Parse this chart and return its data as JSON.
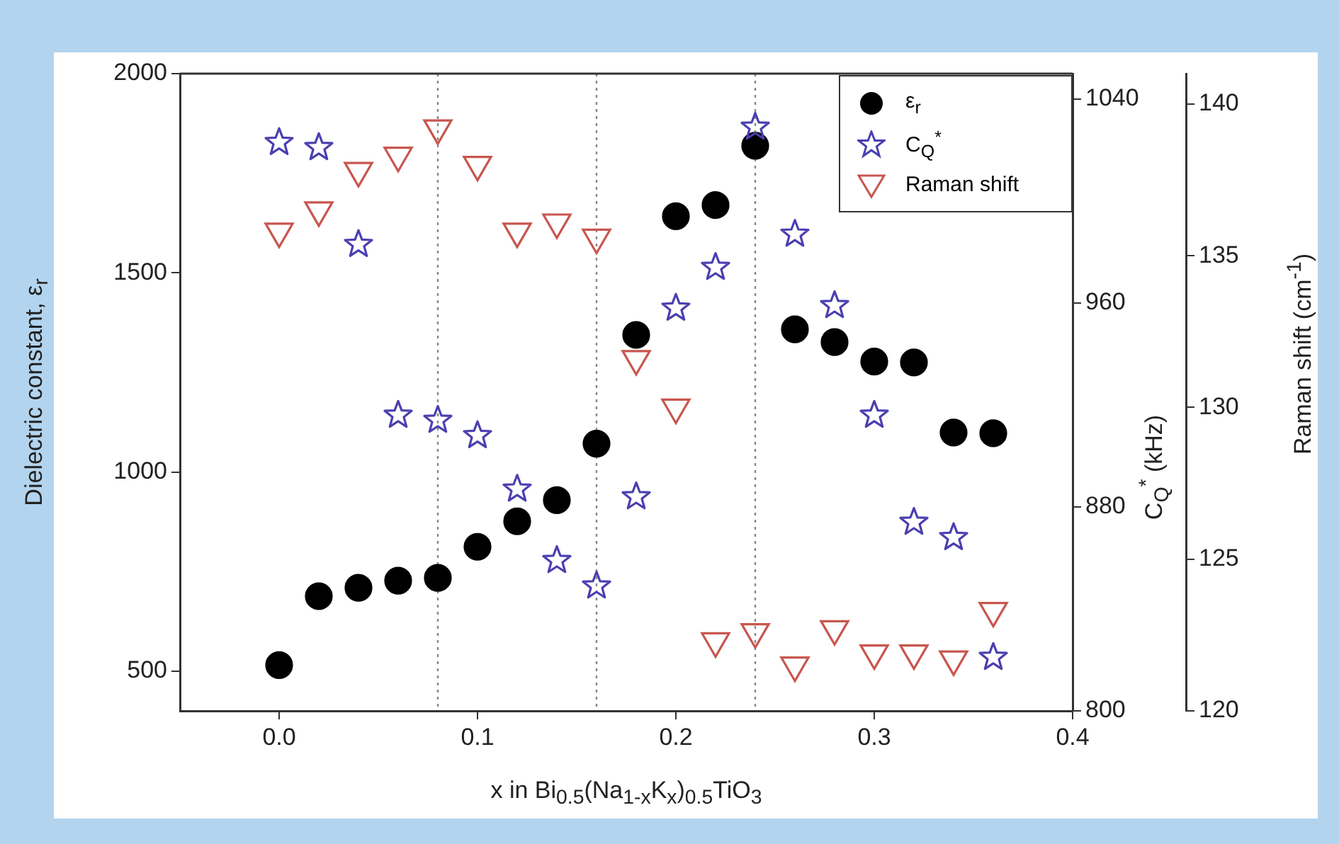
{
  "chart_data": {
    "type": "scatter",
    "xlabel": "x in Bi$_{0.5}$(Na$_{1-x}$K$_{x}$)$_{0.5}$TiO$_{3}$",
    "ylabel": "Dielectric constant, ε$_{r}$",
    "y2label": "C$_{Q}$$^{*}$ (kHz)",
    "y3label": "Raman shift (cm$^{-1}$)",
    "x": [
      0,
      0.02,
      0.04,
      0.06,
      0.08,
      0.1,
      0.12,
      0.14,
      0.16,
      0.18,
      0.2,
      0.22,
      0.24,
      0.26,
      0.28,
      0.3,
      0.32,
      0.34,
      0.36
    ],
    "series": [
      {
        "name": "ε$_{r}$",
        "color": "#000000",
        "marker": "circle",
        "values": [
          515,
          688,
          709,
          727,
          734,
          812,
          876,
          929,
          1071,
          1344,
          1642,
          1670,
          1819,
          1358,
          1326,
          1277,
          1275,
          1099,
          1097
        ]
      },
      {
        "name": "C$_{Q}$$^{*}$",
        "color": "#4b3fb0",
        "marker": "star",
        "axis": "y2",
        "values": [
          1023,
          1021,
          983,
          916,
          914,
          908,
          887,
          859,
          849,
          884,
          958,
          974,
          1029,
          987,
          959,
          916,
          874,
          868,
          821
        ]
      },
      {
        "name": "Raman shift",
        "color": "#c8564e",
        "marker": "triangle",
        "axis": "y3",
        "values": [
          135.8,
          136.5,
          137.8,
          138.3,
          139.2,
          138.0,
          135.8,
          136.1,
          135.6,
          131.6,
          130.0,
          122.3,
          122.6,
          121.5,
          122.7,
          121.9,
          121.9,
          121.7,
          123.3
        ]
      }
    ],
    "xlim": [
      -0.05,
      0.4
    ],
    "xticks": [
      {
        "value": 0,
        "label": "0.0"
      },
      0.1,
      0.2,
      0.3,
      0.4
    ],
    "ylim": [
      400,
      2000
    ],
    "yticks": [
      500,
      1000,
      1500,
      2000
    ],
    "y2lim": [
      800,
      1050
    ],
    "y2ticks": [
      800,
      880,
      960,
      1040
    ],
    "y3lim": [
      120,
      141
    ],
    "y3ticks": [
      120,
      125,
      130,
      135,
      140
    ],
    "ref_lines": [
      {
        "axis": "x",
        "value": 0.08,
        "color": "#888888",
        "line_style": "dotted"
      },
      {
        "axis": "x",
        "value": 0.16,
        "color": "#888888",
        "line_style": "dotted"
      },
      {
        "axis": "x",
        "value": 0.24,
        "color": "#888888",
        "line_style": "dotted"
      }
    ],
    "grid": false,
    "legend": "top right"
  }
}
